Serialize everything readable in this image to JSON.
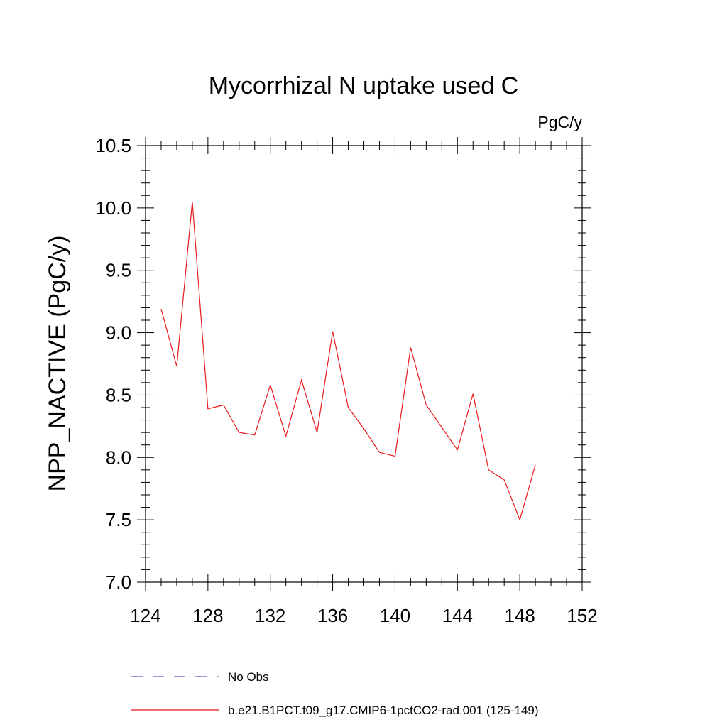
{
  "chart_data": {
    "type": "line",
    "title": "Mycorrhizal N uptake used C",
    "units_label": "PgC/y",
    "ylabel": "NPP_NACTIVE  (PgC/y)",
    "xlabel": "",
    "xlim": [
      124,
      152
    ],
    "ylim": [
      7.0,
      10.5
    ],
    "x_ticks": [
      124,
      128,
      132,
      136,
      140,
      144,
      148,
      152
    ],
    "x_tick_labels": [
      "124",
      "128",
      "132",
      "136",
      "140",
      "144",
      "148",
      "152"
    ],
    "y_ticks": [
      7.0,
      7.5,
      8.0,
      8.5,
      9.0,
      9.5,
      10.0,
      10.5
    ],
    "y_tick_labels": [
      "7.0",
      "7.5",
      "8.0",
      "8.5",
      "9.0",
      "9.5",
      "10.0",
      "10.5"
    ],
    "grid": false,
    "legend_placement": "bottom",
    "legend": [
      {
        "name": "No Obs",
        "style": "dashed",
        "color": "#6a5acd"
      },
      {
        "name": "b.e21.B1PCT.f09_g17.CMIP6-1pctCO2-rad.001 (125-149)",
        "style": "solid",
        "color": "#e8191c"
      }
    ],
    "series": [
      {
        "name": "b.e21.B1PCT.f09_g17.CMIP6-1pctCO2-rad.001 (125-149)",
        "color": "#e8191c",
        "x": [
          125,
          126,
          127,
          128,
          129,
          130,
          131,
          132,
          133,
          134,
          135,
          136,
          137,
          138,
          139,
          140,
          141,
          142,
          143,
          144,
          145,
          146,
          147,
          148,
          149
        ],
        "y": [
          9.19,
          8.73,
          10.05,
          8.39,
          8.42,
          8.2,
          8.18,
          8.58,
          8.17,
          8.62,
          8.2,
          9.01,
          8.4,
          8.23,
          8.04,
          8.01,
          8.88,
          8.42,
          8.24,
          8.06,
          8.51,
          7.9,
          7.82,
          7.5,
          7.94
        ]
      },
      {
        "name": "No Obs",
        "color": "#6a5acd",
        "x": [],
        "y": []
      }
    ]
  }
}
